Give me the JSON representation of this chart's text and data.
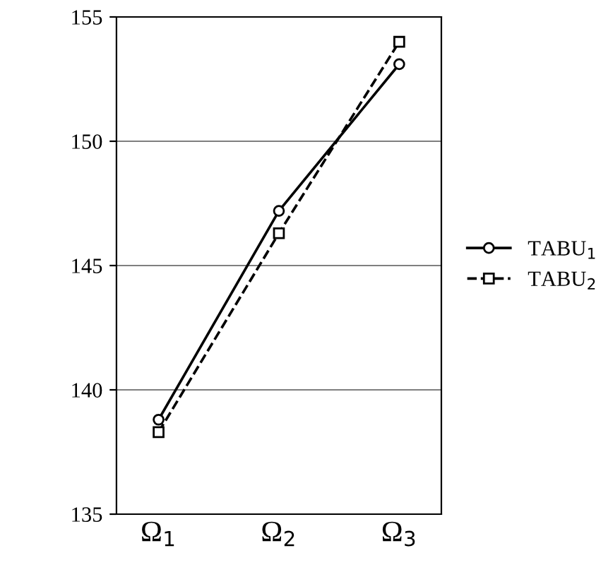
{
  "chart_data": {
    "type": "line",
    "categories": [
      "Ω$_{1}$",
      "Ω$_{2}$",
      "Ω$_{3}$"
    ],
    "series": [
      {
        "name": "TABU$_{1}$",
        "color": "#000000",
        "values": [
          138.8,
          147.2,
          153.1
        ],
        "marker": "circle",
        "line_style": "solid"
      },
      {
        "name": "TABU$_{2}$",
        "color": "#000000",
        "values": [
          138.3,
          146.3,
          154.0
        ],
        "marker": "square",
        "line_style": "dashed"
      }
    ],
    "ylim": [
      135,
      155
    ],
    "yticks": [
      135,
      140,
      145,
      150,
      155
    ],
    "grid": "y",
    "legend": "right"
  }
}
